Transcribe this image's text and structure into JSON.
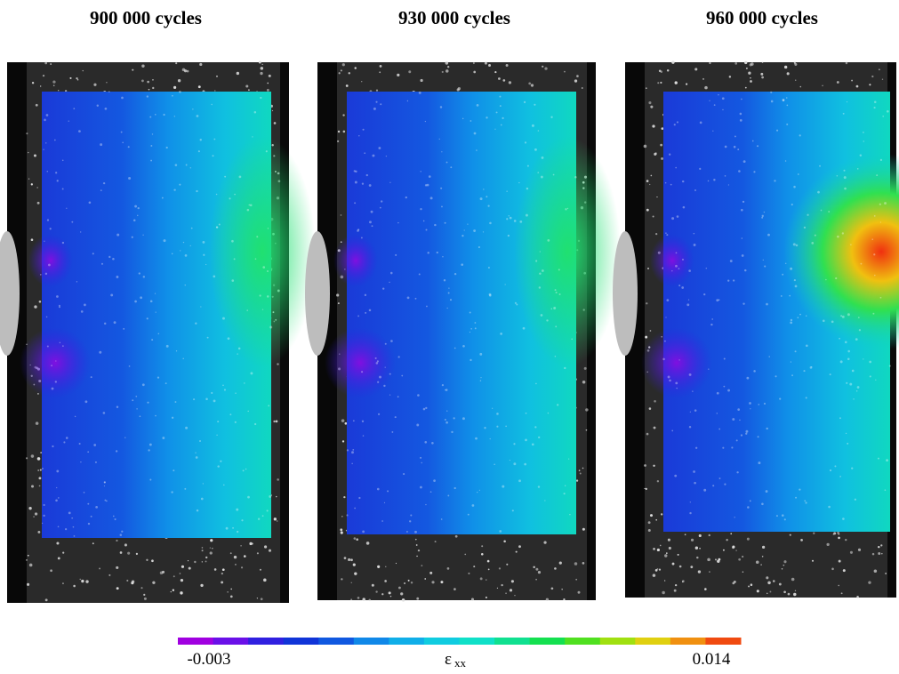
{
  "panels": [
    {
      "title": "900 000 cycles"
    },
    {
      "title": "930 000 cycles"
    },
    {
      "title": "960 000 cycles"
    }
  ],
  "colorbar": {
    "min": -0.003,
    "max": 0.014,
    "symbol": "ε",
    "subscript": "xx",
    "colors": [
      "#a000e0",
      "#6a10e8",
      "#3020e0",
      "#1034d8",
      "#1058e0",
      "#1088e8",
      "#10aee8",
      "#10cce0",
      "#10e0c8",
      "#10e090",
      "#14e050",
      "#50e020",
      "#a0e010",
      "#e0d010",
      "#f09010",
      "#f04a10"
    ]
  }
}
